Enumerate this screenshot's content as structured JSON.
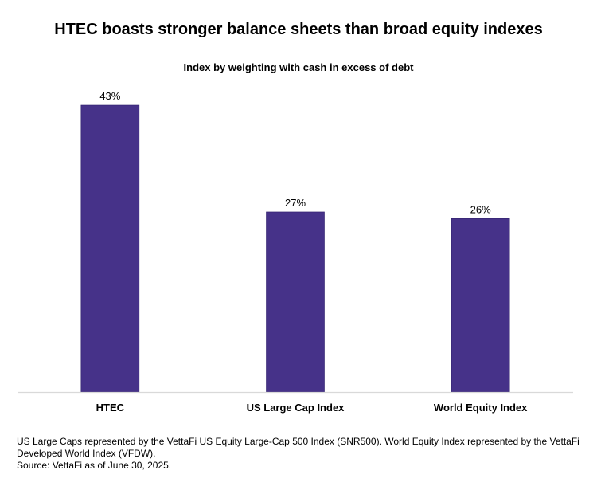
{
  "chart_data": {
    "type": "bar",
    "title": "HTEC boasts stronger balance sheets than broad equity indexes",
    "subtitle": "Index by weighting with cash in excess of debt",
    "categories": [
      "HTEC",
      "US Large Cap Index",
      "World Equity Index"
    ],
    "values": [
      43,
      27,
      26
    ],
    "value_labels": [
      "43%",
      "27%",
      "26%"
    ],
    "xlabel": "",
    "ylabel": "",
    "ylim": [
      0,
      43
    ],
    "grid": false,
    "bar_color": "#463289"
  },
  "footnote": {
    "line1": "US Large Caps represented by the VettaFi US Equity Large-Cap 500 Index (SNR500). World Equity Index represented by the VettaFi Developed World Index (VFDW).",
    "line2": "Source: VettaFi as of June 30, 2025."
  }
}
